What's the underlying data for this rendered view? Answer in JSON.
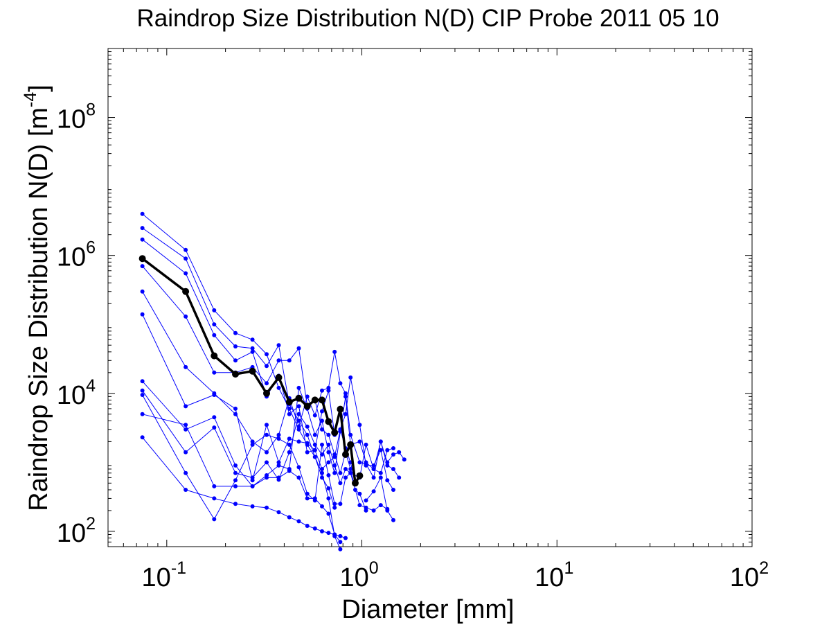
{
  "chart_data": {
    "type": "line",
    "title": "Raindrop Size Distribution N(D) CIP Probe 2011 05 10",
    "xlabel": "Diameter [mm]",
    "ylabel": "Raindrop Size Distribution N(D) [m",
    "ylabel_sup": "-4",
    "ylabel_close": "]",
    "xscale": "log",
    "yscale": "log",
    "xlim": [
      0.05,
      100
    ],
    "ylim": [
      60,
      1000000000
    ],
    "xticks": [
      {
        "value": 0.1,
        "base": "10",
        "exp": "-1"
      },
      {
        "value": 1,
        "base": "10",
        "exp": "0"
      },
      {
        "value": 10,
        "base": "10",
        "exp": "1"
      },
      {
        "value": 100,
        "base": "10",
        "exp": "2"
      }
    ],
    "yticks": [
      {
        "value": 100,
        "base": "10",
        "exp": "2"
      },
      {
        "value": 10000,
        "base": "10",
        "exp": "4"
      },
      {
        "value": 1000000,
        "base": "10",
        "exp": "6"
      },
      {
        "value": 100000000,
        "base": "10",
        "exp": "8"
      }
    ],
    "grid": false,
    "colors": {
      "sample": "#0000ff",
      "mean": "#000000",
      "axes": "#000000"
    },
    "series": [
      {
        "role": "sample",
        "points": [
          [
            0.075,
            4000000
          ],
          [
            0.125,
            1200000
          ],
          [
            0.175,
            160000
          ],
          [
            0.225,
            75000
          ],
          [
            0.275,
            60000
          ],
          [
            0.325,
            37000
          ],
          [
            0.375,
            12000
          ],
          [
            0.425,
            6000
          ],
          [
            0.475,
            3000
          ],
          [
            0.525,
            1800
          ],
          [
            0.575,
            1200
          ],
          [
            0.625,
            600
          ],
          [
            0.675,
            420
          ],
          [
            0.725,
            220
          ]
        ]
      },
      {
        "role": "sample",
        "points": [
          [
            0.075,
            2500000
          ],
          [
            0.125,
            900000
          ],
          [
            0.175,
            100000
          ],
          [
            0.225,
            48000
          ],
          [
            0.275,
            45000
          ],
          [
            0.325,
            25000
          ],
          [
            0.375,
            50000
          ],
          [
            0.425,
            7000
          ],
          [
            0.475,
            4000
          ],
          [
            0.525,
            2500
          ],
          [
            0.575,
            1200
          ],
          [
            0.625,
            700
          ],
          [
            0.675,
            300
          ],
          [
            0.725,
            85
          ],
          [
            0.775,
            55
          ]
        ]
      },
      {
        "role": "sample",
        "points": [
          [
            0.075,
            1700000
          ],
          [
            0.125,
            550000
          ],
          [
            0.175,
            70000
          ],
          [
            0.225,
            30000
          ],
          [
            0.275,
            40000
          ],
          [
            0.325,
            9000
          ],
          [
            0.375,
            18000
          ],
          [
            0.425,
            5000
          ],
          [
            0.475,
            6500
          ],
          [
            0.525,
            1400
          ],
          [
            0.575,
            1500
          ],
          [
            0.625,
            800
          ],
          [
            0.675,
            1000
          ],
          [
            0.725,
            1200
          ],
          [
            0.775,
            3000
          ],
          [
            0.825,
            1600
          ],
          [
            0.875,
            1000
          ],
          [
            0.925,
            500
          ]
        ]
      },
      {
        "role": "sample",
        "points": [
          [
            0.075,
            700000
          ],
          [
            0.125,
            130000
          ],
          [
            0.175,
            20000
          ],
          [
            0.225,
            20000
          ],
          [
            0.275,
            24000
          ],
          [
            0.325,
            14000
          ],
          [
            0.375,
            30000
          ],
          [
            0.425,
            30000
          ],
          [
            0.475,
            45000
          ],
          [
            0.525,
            6500
          ],
          [
            0.575,
            8000
          ],
          [
            0.625,
            3000
          ],
          [
            0.675,
            2500
          ],
          [
            0.725,
            1300
          ],
          [
            0.775,
            700
          ],
          [
            0.825,
            1400
          ],
          [
            0.875,
            800
          ],
          [
            0.925,
            400
          ],
          [
            0.975,
            350
          ],
          [
            1.05,
            200
          ]
        ]
      },
      {
        "role": "sample",
        "points": [
          [
            0.075,
            300000
          ],
          [
            0.125,
            24000
          ],
          [
            0.175,
            10000
          ],
          [
            0.225,
            5000
          ],
          [
            0.275,
            2000
          ],
          [
            0.325,
            1400
          ],
          [
            0.375,
            2500
          ],
          [
            0.425,
            8500
          ],
          [
            0.475,
            3300
          ],
          [
            0.525,
            9000
          ],
          [
            0.575,
            4800
          ],
          [
            0.625,
            11000
          ],
          [
            0.675,
            12000
          ],
          [
            0.725,
            40000
          ],
          [
            0.775,
            14000
          ],
          [
            0.825,
            10000
          ],
          [
            0.875,
            2500
          ],
          [
            0.975,
            1000
          ],
          [
            1.05,
            950
          ],
          [
            1.15,
            600
          ],
          [
            1.25,
            2000
          ],
          [
            1.35,
            900
          ],
          [
            1.45,
            800
          ],
          [
            1.55,
            600
          ]
        ]
      },
      {
        "role": "sample",
        "points": [
          [
            0.075,
            140000
          ],
          [
            0.125,
            6500
          ],
          [
            0.175,
            9500
          ],
          [
            0.225,
            6000
          ],
          [
            0.275,
            550
          ],
          [
            0.325,
            3500
          ],
          [
            0.375,
            1000
          ],
          [
            0.425,
            2200
          ],
          [
            0.475,
            2000
          ],
          [
            0.525,
            1900
          ],
          [
            0.575,
            1500
          ],
          [
            0.625,
            5500
          ],
          [
            0.675,
            11000
          ],
          [
            0.725,
            2500
          ],
          [
            0.775,
            3000
          ],
          [
            0.825,
            5000
          ],
          [
            0.875,
            17000
          ],
          [
            0.975,
            3500
          ],
          [
            1.05,
            900
          ],
          [
            1.15,
            900
          ],
          [
            1.25,
            1500
          ],
          [
            1.35,
            550
          ],
          [
            1.45,
            400
          ]
        ]
      },
      {
        "role": "sample",
        "points": [
          [
            0.075,
            15000
          ],
          [
            0.125,
            3000
          ],
          [
            0.175,
            4500
          ],
          [
            0.225,
            900
          ],
          [
            0.275,
            450
          ],
          [
            0.325,
            650
          ],
          [
            0.375,
            900
          ],
          [
            0.425,
            800
          ],
          [
            0.475,
            12000
          ],
          [
            0.525,
            6000
          ],
          [
            0.575,
            2500
          ],
          [
            0.625,
            4000
          ],
          [
            0.675,
            1400
          ],
          [
            0.725,
            700
          ],
          [
            0.775,
            2800
          ],
          [
            0.825,
            9000
          ],
          [
            0.875,
            1800
          ],
          [
            0.975,
            2000
          ],
          [
            1.05,
            1000
          ],
          [
            1.15,
            800
          ],
          [
            1.25,
            700
          ],
          [
            1.35,
            1500
          ],
          [
            1.45,
            1600
          ]
        ]
      },
      {
        "role": "sample",
        "points": [
          [
            0.075,
            11000
          ],
          [
            0.125,
            1400
          ],
          [
            0.175,
            3200
          ],
          [
            0.225,
            700
          ],
          [
            0.275,
            600
          ],
          [
            0.325,
            1000
          ],
          [
            0.375,
            560
          ],
          [
            0.425,
            1400
          ],
          [
            0.475,
            5000
          ],
          [
            0.525,
            3300
          ],
          [
            0.575,
            1800
          ],
          [
            0.625,
            1300
          ],
          [
            0.675,
            1800
          ],
          [
            0.725,
            900
          ],
          [
            0.775,
            500
          ],
          [
            0.825,
            800
          ],
          [
            0.875,
            700
          ],
          [
            0.975,
            600
          ],
          [
            1.05,
            1800
          ],
          [
            1.15,
            800
          ],
          [
            1.25,
            2000
          ],
          [
            1.35,
            1000
          ],
          [
            1.45,
            1300
          ],
          [
            1.55,
            1400
          ],
          [
            1.65,
            1100
          ]
        ]
      },
      {
        "role": "sample",
        "points": [
          [
            0.075,
            9500
          ],
          [
            0.125,
            700
          ],
          [
            0.175,
            150
          ],
          [
            0.225,
            550
          ],
          [
            0.275,
            1800
          ],
          [
            0.325,
            2500
          ],
          [
            0.375,
            2200
          ],
          [
            0.425,
            1800
          ],
          [
            0.475,
            850
          ],
          [
            0.525,
            350
          ],
          [
            0.575,
            280
          ],
          [
            0.625,
            1800
          ],
          [
            0.675,
            650
          ],
          [
            0.725,
            250
          ],
          [
            0.775,
            250
          ],
          [
            0.825,
            600
          ],
          [
            0.875,
            700
          ],
          [
            0.975,
            240
          ],
          [
            1.05,
            220
          ],
          [
            1.15,
            200
          ],
          [
            1.25,
            240
          ],
          [
            1.35,
            210
          ]
        ]
      },
      {
        "role": "sample",
        "points": [
          [
            0.075,
            5000
          ],
          [
            0.125,
            3500
          ],
          [
            0.175,
            450
          ],
          [
            0.225,
            450
          ],
          [
            0.275,
            450
          ],
          [
            0.325,
            600
          ],
          [
            0.375,
            600
          ],
          [
            0.425,
            750
          ],
          [
            0.475,
            600
          ],
          [
            0.525,
            300
          ],
          [
            0.575,
            300
          ],
          [
            0.625,
            230
          ],
          [
            0.675,
            180
          ],
          [
            0.725,
            90
          ],
          [
            0.775,
            70
          ]
        ]
      },
      {
        "role": "sample",
        "points": [
          [
            0.075,
            2300
          ],
          [
            0.125,
            400
          ],
          [
            0.175,
            300
          ],
          [
            0.225,
            250
          ],
          [
            0.275,
            230
          ],
          [
            0.325,
            220
          ],
          [
            0.375,
            190
          ],
          [
            0.425,
            160
          ],
          [
            0.475,
            140
          ],
          [
            0.525,
            120
          ],
          [
            0.575,
            110
          ],
          [
            0.625,
            100
          ],
          [
            0.675,
            95
          ],
          [
            0.725,
            90
          ],
          [
            0.775,
            85
          ],
          [
            0.825,
            80
          ]
        ]
      },
      {
        "role": "sample",
        "points": [
          [
            1.05,
            280
          ],
          [
            1.15,
            380
          ],
          [
            1.25,
            600
          ],
          [
            1.35,
            200
          ],
          [
            1.45,
            145
          ]
        ]
      },
      {
        "role": "mean",
        "points": [
          [
            0.075,
            900000
          ],
          [
            0.125,
            300000
          ],
          [
            0.175,
            35000
          ],
          [
            0.225,
            19000
          ],
          [
            0.275,
            21000
          ],
          [
            0.325,
            10000
          ],
          [
            0.375,
            17000
          ],
          [
            0.425,
            7500
          ],
          [
            0.475,
            8500
          ],
          [
            0.525,
            6500
          ],
          [
            0.575,
            8000
          ],
          [
            0.625,
            8000
          ],
          [
            0.675,
            3900
          ],
          [
            0.725,
            2700
          ],
          [
            0.775,
            5900
          ],
          [
            0.825,
            1300
          ],
          [
            0.875,
            1800
          ],
          [
            0.925,
            500
          ],
          [
            0.975,
            640
          ]
        ]
      }
    ]
  }
}
